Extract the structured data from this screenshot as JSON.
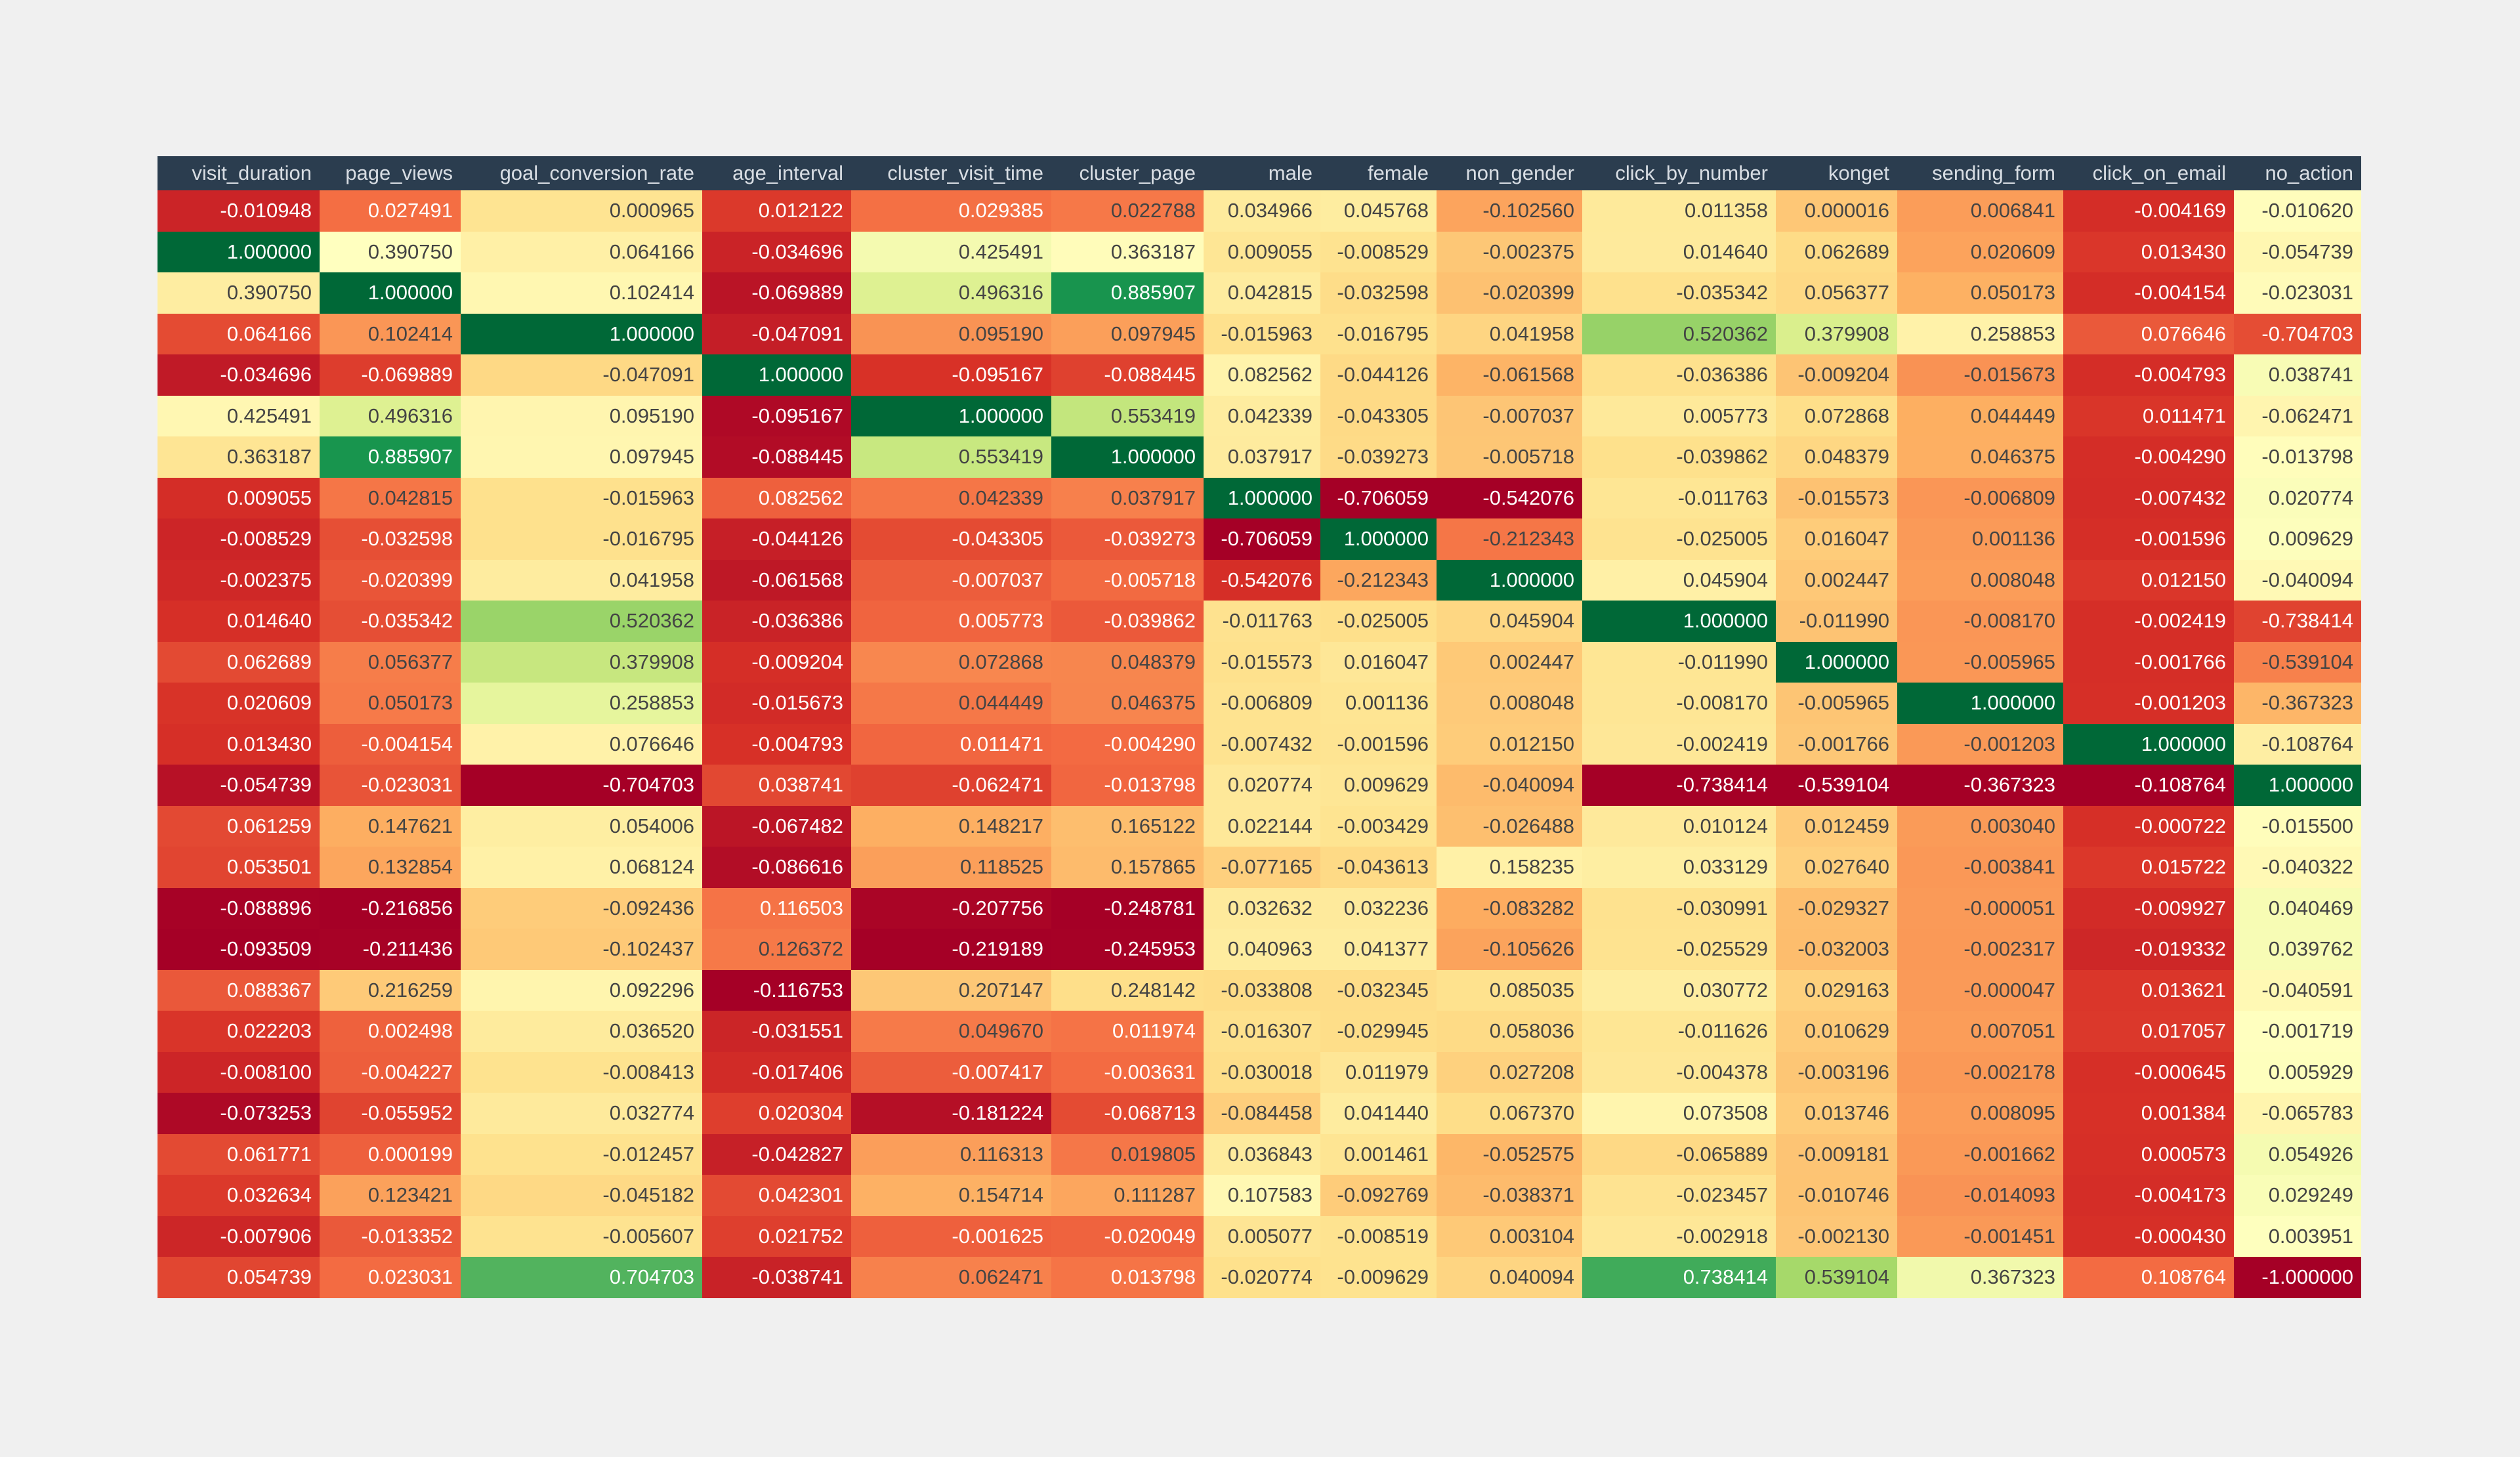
{
  "chart_data": {
    "type": "heatmap",
    "columns": [
      "visit_duration",
      "page_views",
      "goal_conversion_rate",
      "age_interval",
      "cluster_visit_time",
      "cluster_page",
      "male",
      "female",
      "non_gender",
      "click_by_number",
      "konget",
      "sending_form",
      "click_on_email",
      "no_action"
    ],
    "rows": [
      [
        "-0.010948",
        "0.027491",
        "0.000965",
        "0.012122",
        "0.029385",
        "0.022788",
        "0.034966",
        "0.045768",
        "-0.102560",
        "0.011358",
        "0.000016",
        "0.006841",
        "-0.004169",
        "-0.010620"
      ],
      [
        "1.000000",
        "0.390750",
        "0.064166",
        "-0.034696",
        "0.425491",
        "0.363187",
        "0.009055",
        "-0.008529",
        "-0.002375",
        "0.014640",
        "0.062689",
        "0.020609",
        "0.013430",
        "-0.054739"
      ],
      [
        "0.390750",
        "1.000000",
        "0.102414",
        "-0.069889",
        "0.496316",
        "0.885907",
        "0.042815",
        "-0.032598",
        "-0.020399",
        "-0.035342",
        "0.056377",
        "0.050173",
        "-0.004154",
        "-0.023031"
      ],
      [
        "0.064166",
        "0.102414",
        "1.000000",
        "-0.047091",
        "0.095190",
        "0.097945",
        "-0.015963",
        "-0.016795",
        "0.041958",
        "0.520362",
        "0.379908",
        "0.258853",
        "0.076646",
        "-0.704703"
      ],
      [
        "-0.034696",
        "-0.069889",
        "-0.047091",
        "1.000000",
        "-0.095167",
        "-0.088445",
        "0.082562",
        "-0.044126",
        "-0.061568",
        "-0.036386",
        "-0.009204",
        "-0.015673",
        "-0.004793",
        "0.038741"
      ],
      [
        "0.425491",
        "0.496316",
        "0.095190",
        "-0.095167",
        "1.000000",
        "0.553419",
        "0.042339",
        "-0.043305",
        "-0.007037",
        "0.005773",
        "0.072868",
        "0.044449",
        "0.011471",
        "-0.062471"
      ],
      [
        "0.363187",
        "0.885907",
        "0.097945",
        "-0.088445",
        "0.553419",
        "1.000000",
        "0.037917",
        "-0.039273",
        "-0.005718",
        "-0.039862",
        "0.048379",
        "0.046375",
        "-0.004290",
        "-0.013798"
      ],
      [
        "0.009055",
        "0.042815",
        "-0.015963",
        "0.082562",
        "0.042339",
        "0.037917",
        "1.000000",
        "-0.706059",
        "-0.542076",
        "-0.011763",
        "-0.015573",
        "-0.006809",
        "-0.007432",
        "0.020774"
      ],
      [
        "-0.008529",
        "-0.032598",
        "-0.016795",
        "-0.044126",
        "-0.043305",
        "-0.039273",
        "-0.706059",
        "1.000000",
        "-0.212343",
        "-0.025005",
        "0.016047",
        "0.001136",
        "-0.001596",
        "0.009629"
      ],
      [
        "-0.002375",
        "-0.020399",
        "0.041958",
        "-0.061568",
        "-0.007037",
        "-0.005718",
        "-0.542076",
        "-0.212343",
        "1.000000",
        "0.045904",
        "0.002447",
        "0.008048",
        "0.012150",
        "-0.040094"
      ],
      [
        "0.014640",
        "-0.035342",
        "0.520362",
        "-0.036386",
        "0.005773",
        "-0.039862",
        "-0.011763",
        "-0.025005",
        "0.045904",
        "1.000000",
        "-0.011990",
        "-0.008170",
        "-0.002419",
        "-0.738414"
      ],
      [
        "0.062689",
        "0.056377",
        "0.379908",
        "-0.009204",
        "0.072868",
        "0.048379",
        "-0.015573",
        "0.016047",
        "0.002447",
        "-0.011990",
        "1.000000",
        "-0.005965",
        "-0.001766",
        "-0.539104"
      ],
      [
        "0.020609",
        "0.050173",
        "0.258853",
        "-0.015673",
        "0.044449",
        "0.046375",
        "-0.006809",
        "0.001136",
        "0.008048",
        "-0.008170",
        "-0.005965",
        "1.000000",
        "-0.001203",
        "-0.367323"
      ],
      [
        "0.013430",
        "-0.004154",
        "0.076646",
        "-0.004793",
        "0.011471",
        "-0.004290",
        "-0.007432",
        "-0.001596",
        "0.012150",
        "-0.002419",
        "-0.001766",
        "-0.001203",
        "1.000000",
        "-0.108764"
      ],
      [
        "-0.054739",
        "-0.023031",
        "-0.704703",
        "0.038741",
        "-0.062471",
        "-0.013798",
        "0.020774",
        "0.009629",
        "-0.040094",
        "-0.738414",
        "-0.539104",
        "-0.367323",
        "-0.108764",
        "1.000000"
      ],
      [
        "0.061259",
        "0.147621",
        "0.054006",
        "-0.067482",
        "0.148217",
        "0.165122",
        "0.022144",
        "-0.003429",
        "-0.026488",
        "0.010124",
        "0.012459",
        "0.003040",
        "-0.000722",
        "-0.015500"
      ],
      [
        "0.053501",
        "0.132854",
        "0.068124",
        "-0.086616",
        "0.118525",
        "0.157865",
        "-0.077165",
        "-0.043613",
        "0.158235",
        "0.033129",
        "0.027640",
        "-0.003841",
        "0.015722",
        "-0.040322"
      ],
      [
        "-0.088896",
        "-0.216856",
        "-0.092436",
        "0.116503",
        "-0.207756",
        "-0.248781",
        "0.032632",
        "0.032236",
        "-0.083282",
        "-0.030991",
        "-0.029327",
        "-0.000051",
        "-0.009927",
        "0.040469"
      ],
      [
        "-0.093509",
        "-0.211436",
        "-0.102437",
        "0.126372",
        "-0.219189",
        "-0.245953",
        "0.040963",
        "0.041377",
        "-0.105626",
        "-0.025529",
        "-0.032003",
        "-0.002317",
        "-0.019332",
        "0.039762"
      ],
      [
        "0.088367",
        "0.216259",
        "0.092296",
        "-0.116753",
        "0.207147",
        "0.248142",
        "-0.033808",
        "-0.032345",
        "0.085035",
        "0.030772",
        "0.029163",
        "-0.000047",
        "0.013621",
        "-0.040591"
      ],
      [
        "0.022203",
        "0.002498",
        "0.036520",
        "-0.031551",
        "0.049670",
        "0.011974",
        "-0.016307",
        "-0.029945",
        "0.058036",
        "-0.011626",
        "0.010629",
        "0.007051",
        "0.017057",
        "-0.001719"
      ],
      [
        "-0.008100",
        "-0.004227",
        "-0.008413",
        "-0.017406",
        "-0.007417",
        "-0.003631",
        "-0.030018",
        "0.011979",
        "0.027208",
        "-0.004378",
        "-0.003196",
        "-0.002178",
        "-0.000645",
        "0.005929"
      ],
      [
        "-0.073253",
        "-0.055952",
        "0.032774",
        "0.020304",
        "-0.181224",
        "-0.068713",
        "-0.084458",
        "0.041440",
        "0.067370",
        "0.073508",
        "0.013746",
        "0.008095",
        "0.001384",
        "-0.065783"
      ],
      [
        "0.061771",
        "0.000199",
        "-0.012457",
        "-0.042827",
        "0.116313",
        "0.019805",
        "0.036843",
        "0.001461",
        "-0.052575",
        "-0.065889",
        "-0.009181",
        "-0.001662",
        "0.000573",
        "0.054926"
      ],
      [
        "0.032634",
        "0.123421",
        "-0.045182",
        "0.042301",
        "0.154714",
        "0.111287",
        "0.107583",
        "-0.092769",
        "-0.038371",
        "-0.023457",
        "-0.010746",
        "-0.014093",
        "-0.004173",
        "0.029249"
      ],
      [
        "-0.007906",
        "-0.013352",
        "-0.005607",
        "0.021752",
        "-0.001625",
        "-0.020049",
        "0.005077",
        "-0.008519",
        "0.003104",
        "-0.002918",
        "-0.002130",
        "-0.001451",
        "-0.000430",
        "0.003951"
      ],
      [
        "0.054739",
        "0.023031",
        "0.704703",
        "-0.038741",
        "0.062471",
        "0.013798",
        "-0.020774",
        "-0.009629",
        "0.040094",
        "0.738414",
        "0.539104",
        "0.367323",
        "0.108764",
        "-1.000000"
      ]
    ],
    "colormap": "RdYlGn",
    "color_scale": "per-column min to max",
    "colors": {
      "header_bg": "#2b3d4f",
      "header_text": "#d8dde3",
      "page_bg": "#f0f0f0"
    }
  }
}
